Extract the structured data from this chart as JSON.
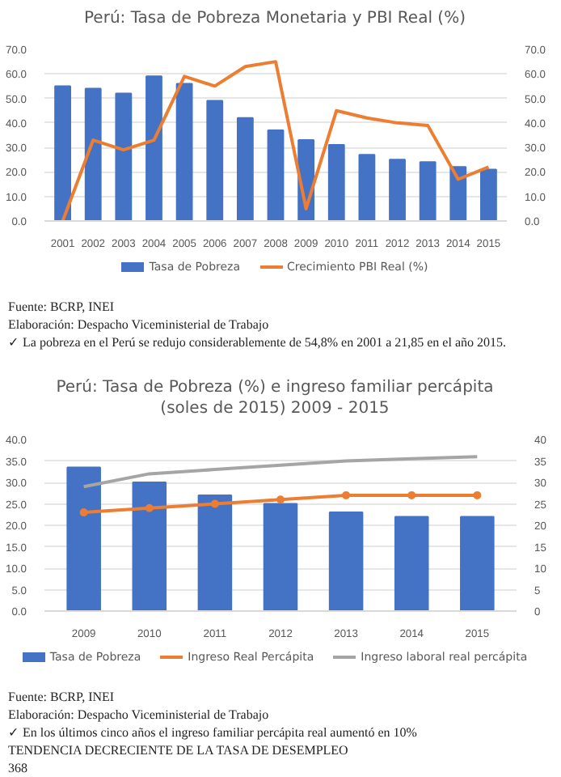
{
  "chart_data": [
    {
      "type": "bar",
      "title": "Perú: Tasa de Pobreza Monetaria y PBI Real (%)",
      "categories": [
        "2001",
        "2002",
        "2003",
        "2004",
        "2005",
        "2006",
        "2007",
        "2008",
        "2009",
        "2010",
        "2011",
        "2012",
        "2013",
        "2014",
        "2015"
      ],
      "series": [
        {
          "name": "Tasa de Pobreza",
          "color": "#4472c4",
          "values": [
            55,
            54,
            52,
            59,
            56,
            49,
            42,
            37,
            33,
            31,
            27,
            25,
            24,
            22,
            21
          ]
        },
        {
          "name": "Crecimiento PBI Real (%)",
          "type": "line",
          "color": "#ed7d31",
          "values": [
            0,
            33,
            29,
            33,
            59,
            55,
            63,
            65,
            5,
            45,
            42,
            40,
            39,
            17,
            22
          ]
        }
      ],
      "ylim": [
        0,
        70
      ],
      "yticks": [
        {
          "value": 0,
          "label": "0.0"
        },
        {
          "value": 10,
          "label": "10.0"
        },
        {
          "value": 20,
          "label": "20.0"
        },
        {
          "value": 30,
          "label": "30.0"
        },
        {
          "value": 40,
          "label": "40.0"
        },
        {
          "value": 50,
          "label": "50.0"
        },
        {
          "value": 60,
          "label": "60.0"
        },
        {
          "value": 70,
          "label": "70.0"
        }
      ],
      "y2lim": [
        0,
        70
      ],
      "y2ticks": [
        {
          "value": 0,
          "label": "0.0"
        },
        {
          "value": 10,
          "label": "10.0"
        },
        {
          "value": 20,
          "label": "20.0"
        },
        {
          "value": 30,
          "label": "30.0"
        },
        {
          "value": 40,
          "label": "40.0"
        },
        {
          "value": 50,
          "label": "50.0"
        },
        {
          "value": 60,
          "label": "60.0"
        },
        {
          "value": 70,
          "label": "70.0"
        }
      ],
      "grid": "y",
      "legend": "bottom",
      "annotations": [
        "Fuente: BCRP, INEI",
        "Elaboración: Despacho Viceministerial de Trabajo",
        "✓ La pobreza en el Perú se redujo considerablemente de 54,8% en 2001 a 21,85 en el año 2015."
      ]
    },
    {
      "type": "bar",
      "title": "Perú: Tasa de Pobreza (%) e ingreso familiar percápita\n(soles de 2015) 2009 - 2015",
      "categories": [
        "2009",
        "2010",
        "2011",
        "2012",
        "2013",
        "2014",
        "2015"
      ],
      "series": [
        {
          "name": "Tasa de Pobreza",
          "color": "#4472c4",
          "values": [
            33.5,
            30,
            27,
            25,
            23,
            22,
            22
          ]
        },
        {
          "name": "Ingreso Real Percápita",
          "type": "line",
          "marker": "circle",
          "color": "#ed7d31",
          "values": [
            23,
            24,
            25,
            26,
            27,
            27,
            27
          ]
        },
        {
          "name": "Ingreso laboral real percápita",
          "type": "line",
          "color": "#a5a5a5",
          "values": [
            29,
            32,
            33,
            34,
            35,
            35.5,
            36
          ]
        }
      ],
      "ylim": [
        0,
        40
      ],
      "yticks": [
        {
          "value": 0,
          "label": "0.0"
        },
        {
          "value": 5,
          "label": "5.0"
        },
        {
          "value": 10,
          "label": "10.0"
        },
        {
          "value": 15,
          "label": "15.0"
        },
        {
          "value": 20,
          "label": "20.0"
        },
        {
          "value": 25,
          "label": "25.0"
        },
        {
          "value": 30,
          "label": "30.0"
        },
        {
          "value": 35,
          "label": "35.0"
        },
        {
          "value": 40,
          "label": "40.0"
        }
      ],
      "y2lim": [
        0,
        40
      ],
      "y2ticks": [
        0,
        5,
        10,
        15,
        20,
        25,
        30,
        35,
        40
      ],
      "grid": "y",
      "legend": "bottom",
      "annotations": [
        "Fuente: BCRP, INEI",
        "Elaboración: Despacho Viceministerial de Trabajo",
        "✓ En los últimos cinco años el ingreso familiar percápita real aumentó en 10%",
        "TENDENCIA DECRECIENTE DE LA TASA DE DESEMPLEO",
        "368"
      ]
    }
  ]
}
